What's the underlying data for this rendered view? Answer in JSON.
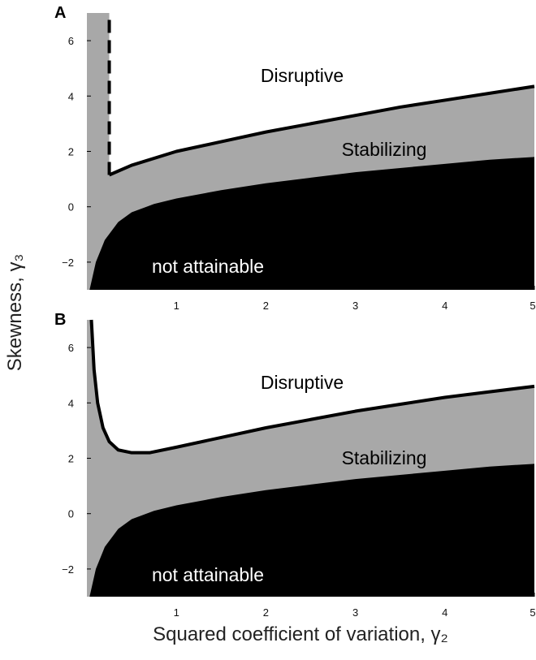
{
  "chart_data": {
    "type": "area",
    "ylabel": "Skewness, γ₃",
    "xlabel": "Squared coefficient of variation, γ₂",
    "colors": {
      "disruptive": "#ffffff",
      "stabilizing": "#a8a8a8",
      "not_attainable": "#000000"
    },
    "panels": [
      {
        "panel": "A",
        "xlim": [
          0,
          5
        ],
        "ylim": [
          -3,
          7
        ],
        "x_ticks": [
          1,
          2,
          3,
          4,
          5
        ],
        "y_ticks": [
          -2,
          0,
          2,
          4,
          6
        ],
        "regions": {
          "disruptive": "Disruptive",
          "stabilizing": "Stabilizing",
          "not_attainable": "not attainable"
        },
        "boundary_style": "dashed vertical segment at x = 0.25 from y = 1.1 upward, then solid curve",
        "boundary": {
          "x": [
            0.25,
            0.5,
            1,
            1.5,
            2,
            2.5,
            3,
            3.5,
            4,
            4.5,
            5
          ],
          "y": [
            1.15,
            1.5,
            2.0,
            2.35,
            2.7,
            3.0,
            3.3,
            3.6,
            3.85,
            4.1,
            4.35
          ]
        },
        "attainable_limit": {
          "x": [
            0.03,
            0.1,
            0.2,
            0.35,
            0.5,
            0.75,
            1,
            1.5,
            2,
            2.5,
            3,
            3.5,
            4,
            4.5,
            5
          ],
          "y": [
            -3,
            -2.0,
            -1.2,
            -0.55,
            -0.2,
            0.1,
            0.3,
            0.6,
            0.85,
            1.05,
            1.25,
            1.4,
            1.55,
            1.7,
            1.8
          ]
        }
      },
      {
        "panel": "B",
        "xlim": [
          0,
          5
        ],
        "ylim": [
          -3,
          7
        ],
        "x_ticks": [
          1,
          2,
          3,
          4,
          5
        ],
        "y_ticks": [
          -2,
          0,
          2,
          4,
          6
        ],
        "regions": {
          "disruptive": "Disruptive",
          "stabilizing": "Stabilizing",
          "not_attainable": "not attainable"
        },
        "boundary_style": "solid curve",
        "boundary": {
          "x": [
            0.05,
            0.08,
            0.12,
            0.18,
            0.25,
            0.35,
            0.5,
            0.7,
            1,
            1.5,
            2,
            2.5,
            3,
            3.5,
            4,
            4.5,
            5
          ],
          "y": [
            7.0,
            5.2,
            4.0,
            3.1,
            2.6,
            2.3,
            2.2,
            2.2,
            2.4,
            2.75,
            3.1,
            3.4,
            3.7,
            3.95,
            4.2,
            4.4,
            4.6
          ]
        },
        "attainable_limit": {
          "x": [
            0.03,
            0.1,
            0.2,
            0.35,
            0.5,
            0.75,
            1,
            1.5,
            2,
            2.5,
            3,
            3.5,
            4,
            4.5,
            5
          ],
          "y": [
            -3,
            -2.0,
            -1.2,
            -0.55,
            -0.2,
            0.1,
            0.3,
            0.6,
            0.85,
            1.05,
            1.25,
            1.4,
            1.55,
            1.7,
            1.8
          ]
        }
      }
    ]
  }
}
